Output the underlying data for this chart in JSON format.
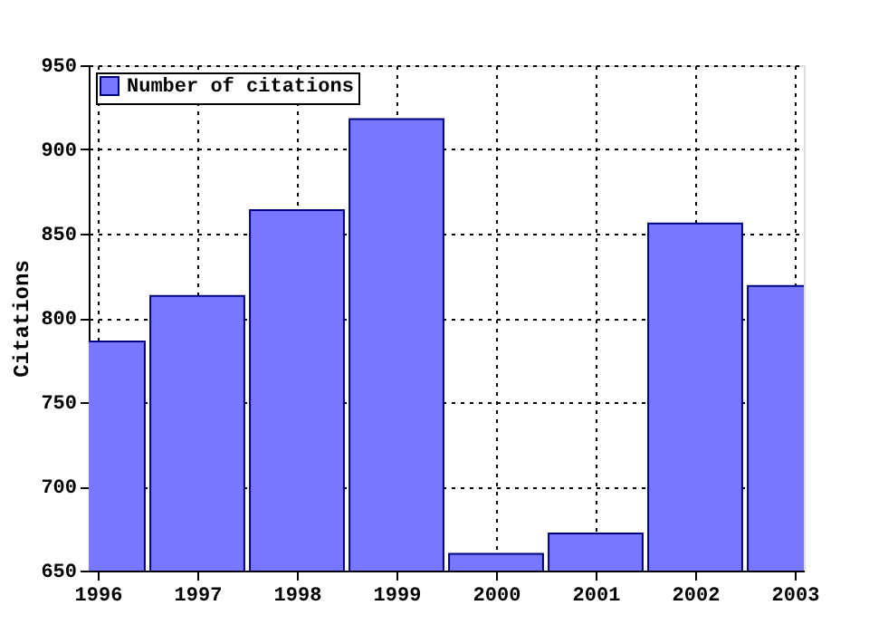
{
  "chart_data": {
    "type": "bar",
    "x": [
      1996,
      1997,
      1998,
      1999,
      2000,
      2001,
      2002,
      2003
    ],
    "series": [
      {
        "name": "Number of citations",
        "color": "#7777ff",
        "values": [
          786,
          813,
          864,
          918,
          660,
          672,
          856,
          819
        ]
      }
    ],
    "ylabel": "Citations",
    "xlim": [
      1996,
      2003
    ],
    "xticks": [
      1996,
      1997,
      1998,
      1999,
      2000,
      2001,
      2002,
      2003
    ],
    "ylim": [
      650,
      950
    ],
    "yticks": [
      650,
      700,
      750,
      800,
      850,
      900,
      950
    ],
    "grid": true,
    "legend": "top left"
  }
}
